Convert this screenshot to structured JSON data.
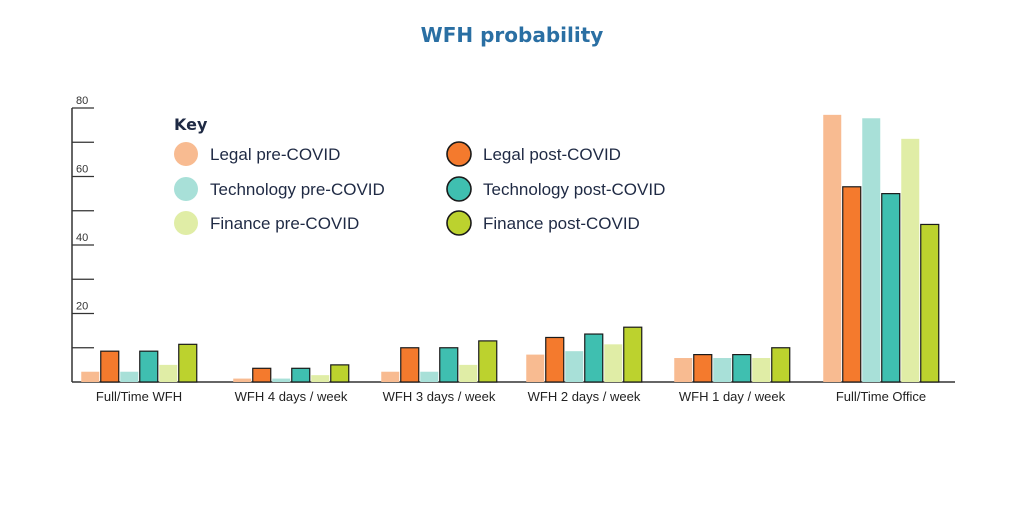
{
  "chart_data": {
    "type": "bar",
    "title": "WFH probability",
    "xlabel": "",
    "ylabel": "",
    "ylim": [
      0,
      80
    ],
    "yticks": [
      20,
      40,
      60,
      80
    ],
    "categories": [
      "Full/Time WFH",
      "WFH 4 days / week",
      "WFH 3 days / week",
      "WFH 2 days / week",
      "WFH 1 day / week",
      "Full/Time Office"
    ],
    "series": [
      {
        "name": "Legal pre-COVID",
        "color": "#f8bb91",
        "outlined": false,
        "values": [
          3,
          1,
          3,
          8,
          7,
          78
        ]
      },
      {
        "name": "Legal post-COVID",
        "color": "#f47a2d",
        "outlined": true,
        "values": [
          9,
          4,
          10,
          13,
          8,
          57
        ]
      },
      {
        "name": "Technology pre-COVID",
        "color": "#a8e0d8",
        "outlined": false,
        "values": [
          3,
          1,
          3,
          9,
          7,
          77
        ]
      },
      {
        "name": "Technology post-COVID",
        "color": "#3fbfb0",
        "outlined": true,
        "values": [
          9,
          4,
          10,
          14,
          8,
          55
        ]
      },
      {
        "name": "Finance pre-COVID",
        "color": "#e0eda6",
        "outlined": false,
        "values": [
          5,
          2,
          5,
          11,
          7,
          71
        ]
      },
      {
        "name": "Finance post-COVID",
        "color": "#bcd22e",
        "outlined": true,
        "values": [
          11,
          5,
          12,
          16,
          10,
          46
        ]
      }
    ],
    "legend": {
      "title": "Key",
      "placement": "top-left"
    },
    "grid": false,
    "colors": {
      "title": "#2a6fa3",
      "axis": "#333333",
      "text": "#1f2a44"
    }
  }
}
